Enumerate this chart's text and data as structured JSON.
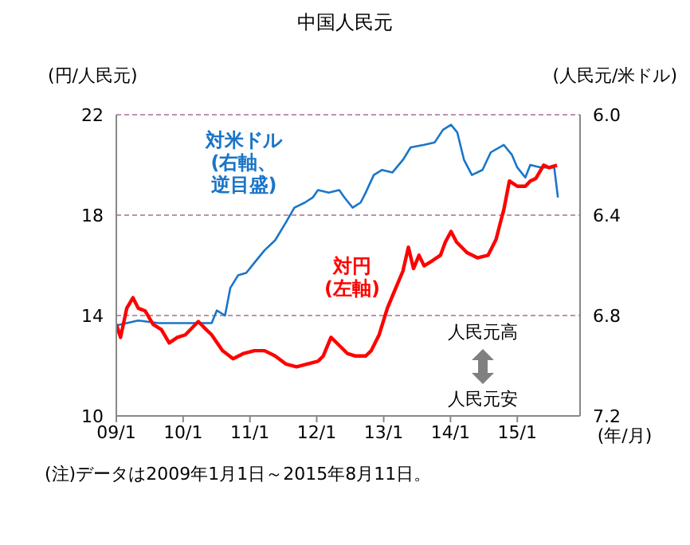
{
  "chart_data": {
    "type": "line",
    "title": "中国人民元",
    "ylabel": "(円/人民元)",
    "y2label": "(人民元/米ドル)",
    "xlabel": "(年/月)",
    "xlim": [
      "2009-01-01",
      "2015-12-10"
    ],
    "xticks": [
      {
        "value": "2009-01",
        "label": "09/1"
      },
      {
        "value": "2010-01",
        "label": "10/1"
      },
      {
        "value": "2011-01",
        "label": "11/1"
      },
      {
        "value": "2012-01",
        "label": "12/1"
      },
      {
        "value": "2013-01",
        "label": "13/1"
      },
      {
        "value": "2014-01",
        "label": "14/1"
      },
      {
        "value": "2015-01",
        "label": "15/1"
      }
    ],
    "ylim": [
      10,
      22
    ],
    "yticks": [
      10,
      14,
      18,
      22
    ],
    "y2lim": [
      7.2,
      6.0
    ],
    "y2ticks": [
      {
        "value": 7.2,
        "label": "7.2"
      },
      6.8,
      6.4,
      {
        "value": 6.0,
        "label": "6.0"
      }
    ],
    "grid": "y",
    "series": [
      {
        "name": "対米ドル(右軸、逆目盛)",
        "color": "#1a75c8",
        "axis": "y2",
        "x": [
          "2009-01-01",
          "2009-02-27",
          "2009-05-01",
          "2009-08-19",
          "2010-01-13",
          "2010-06-06",
          "2010-07-04",
          "2010-08-18",
          "2010-09-16",
          "2010-10-28",
          "2010-12-12",
          "2011-01-25",
          "2011-03-22",
          "2011-05-19",
          "2011-07-16",
          "2011-09-01",
          "2011-10-28",
          "2011-12-10",
          "2012-01-08",
          "2012-03-07",
          "2012-05-03",
          "2012-06-01",
          "2012-07-15",
          "2012-08-28",
          "2012-09-25",
          "2012-11-08",
          "2012-12-22",
          "2013-02-18",
          "2013-04-16",
          "2013-05-28",
          "2013-08-10",
          "2013-10-07",
          "2013-11-21",
          "2014-01-04",
          "2014-02-07",
          "2014-03-16",
          "2014-04-28",
          "2014-06-25",
          "2014-08-09",
          "2014-10-19",
          "2014-12-03",
          "2015-01-01",
          "2015-02-14",
          "2015-03-13",
          "2015-05-10",
          "2015-07-22",
          "2015-08-11"
        ],
        "values": [
          6.84,
          6.83,
          6.82,
          6.83,
          6.83,
          6.83,
          6.78,
          6.8,
          6.69,
          6.64,
          6.63,
          6.59,
          6.54,
          6.5,
          6.43,
          6.37,
          6.35,
          6.33,
          6.3,
          6.31,
          6.3,
          6.33,
          6.37,
          6.35,
          6.31,
          6.24,
          6.22,
          6.23,
          6.18,
          6.13,
          6.12,
          6.11,
          6.06,
          6.04,
          6.07,
          6.18,
          6.24,
          6.22,
          6.15,
          6.12,
          6.16,
          6.21,
          6.25,
          6.2,
          6.21,
          6.21,
          6.33
        ]
      },
      {
        "name": "対円(左軸)",
        "color": "#ff0000",
        "axis": "y",
        "x": [
          "2009-01-01",
          "2009-01-24",
          "2009-02-27",
          "2009-04-02",
          "2009-05-01",
          "2009-06-08",
          "2009-07-21",
          "2009-09-04",
          "2009-10-17",
          "2009-12-01",
          "2010-01-13",
          "2010-03-25",
          "2010-05-07",
          "2010-06-06",
          "2010-08-04",
          "2010-10-01",
          "2010-11-28",
          "2011-01-25",
          "2011-03-22",
          "2011-05-19",
          "2011-07-16",
          "2011-09-13",
          "2011-11-10",
          "2012-01-08",
          "2012-02-06",
          "2012-03-19",
          "2012-05-03",
          "2012-06-16",
          "2012-07-28",
          "2012-09-25",
          "2012-10-25",
          "2012-12-07",
          "2013-01-21",
          "2013-03-04",
          "2013-04-16",
          "2013-05-16",
          "2013-06-13",
          "2013-07-13",
          "2013-08-10",
          "2013-09-25",
          "2013-11-07",
          "2013-12-04",
          "2014-01-04",
          "2014-02-03",
          "2014-04-01",
          "2014-05-28",
          "2014-07-25",
          "2014-09-07",
          "2014-10-07",
          "2014-10-19",
          "2014-11-19",
          "2015-01-01",
          "2015-02-14",
          "2015-03-13",
          "2015-04-12",
          "2015-05-25",
          "2015-06-24",
          "2015-08-06"
        ],
        "values": [
          13.65,
          13.13,
          14.29,
          14.71,
          14.29,
          14.18,
          13.65,
          13.44,
          12.91,
          13.13,
          13.23,
          13.76,
          13.44,
          13.23,
          12.6,
          12.28,
          12.49,
          12.6,
          12.6,
          12.39,
          12.07,
          11.96,
          12.07,
          12.18,
          12.39,
          13.13,
          12.81,
          12.49,
          12.39,
          12.39,
          12.6,
          13.23,
          14.29,
          15.03,
          15.77,
          16.72,
          15.87,
          16.4,
          15.98,
          16.19,
          16.4,
          16.93,
          17.35,
          16.93,
          16.51,
          16.3,
          16.4,
          17.03,
          17.88,
          18.2,
          19.36,
          19.15,
          19.15,
          19.36,
          19.46,
          19.99,
          19.89,
          19.99
        ]
      }
    ],
    "annotations": [
      "人民元高",
      "人民元安",
      "(注)データは2009年1月1日～2015年8月11日。"
    ]
  }
}
